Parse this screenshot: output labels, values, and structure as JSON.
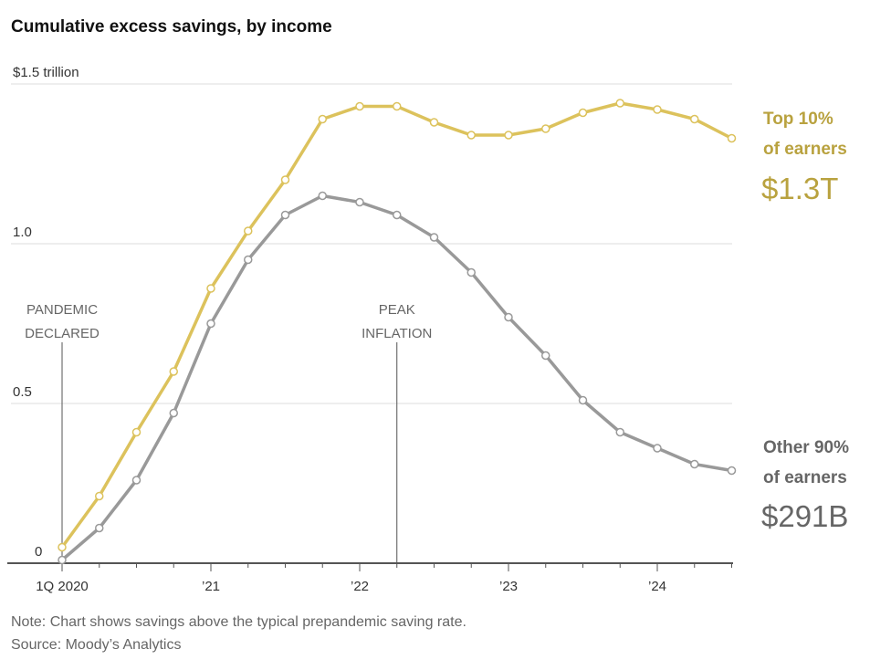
{
  "chart_data": {
    "type": "line",
    "title": "Cumulative excess savings, by income",
    "ylabel": "",
    "xlabel": "",
    "ylim": [
      0,
      1.5
    ],
    "yticks": [
      0,
      0.5,
      1.0,
      1.5
    ],
    "ytick_labels": [
      "0",
      "0.5",
      "1.0",
      "$1.5 trillion"
    ],
    "xtick_labels": [
      "1Q 2020",
      "’21",
      "’22",
      "’23",
      "’24"
    ],
    "x": [
      "1Q2020",
      "2Q2020",
      "3Q2020",
      "4Q2020",
      "1Q2021",
      "2Q2021",
      "3Q2021",
      "4Q2021",
      "1Q2022",
      "2Q2022",
      "3Q2022",
      "4Q2022",
      "1Q2023",
      "2Q2023",
      "3Q2023",
      "4Q2023",
      "1Q2024",
      "2Q2024",
      "3Q2024"
    ],
    "grid": true,
    "series": [
      {
        "name": "Top 10% of earners",
        "end_label": "$1.3T",
        "color": "#dcc25c",
        "values": [
          0.05,
          0.21,
          0.41,
          0.6,
          0.86,
          1.04,
          1.2,
          1.39,
          1.43,
          1.43,
          1.38,
          1.34,
          1.34,
          1.36,
          1.41,
          1.44,
          1.42,
          1.39,
          1.33
        ]
      },
      {
        "name": "Other 90% of earners",
        "end_label": "$291B",
        "color": "#999999",
        "values": [
          0.01,
          0.11,
          0.26,
          0.47,
          0.75,
          0.95,
          1.09,
          1.15,
          1.13,
          1.09,
          1.02,
          0.91,
          0.77,
          0.65,
          0.51,
          0.41,
          0.36,
          0.31,
          0.29
        ]
      }
    ],
    "annotations": [
      {
        "x": "1Q2020",
        "lines": [
          "PANDEMIC",
          "DECLARED"
        ]
      },
      {
        "x": "2Q2022",
        "lines": [
          "PEAK",
          "INFLATION"
        ]
      }
    ],
    "labels": {
      "top_line1": "Top 10%",
      "top_line2": "of earners",
      "top_value": "$1.3T",
      "other_line1": "Other 90%",
      "other_line2": "of earners",
      "other_value": "$291B"
    },
    "note": "Note: Chart shows savings above the typical prepandemic saving rate.",
    "source": "Source: Moody’s Analytics"
  }
}
